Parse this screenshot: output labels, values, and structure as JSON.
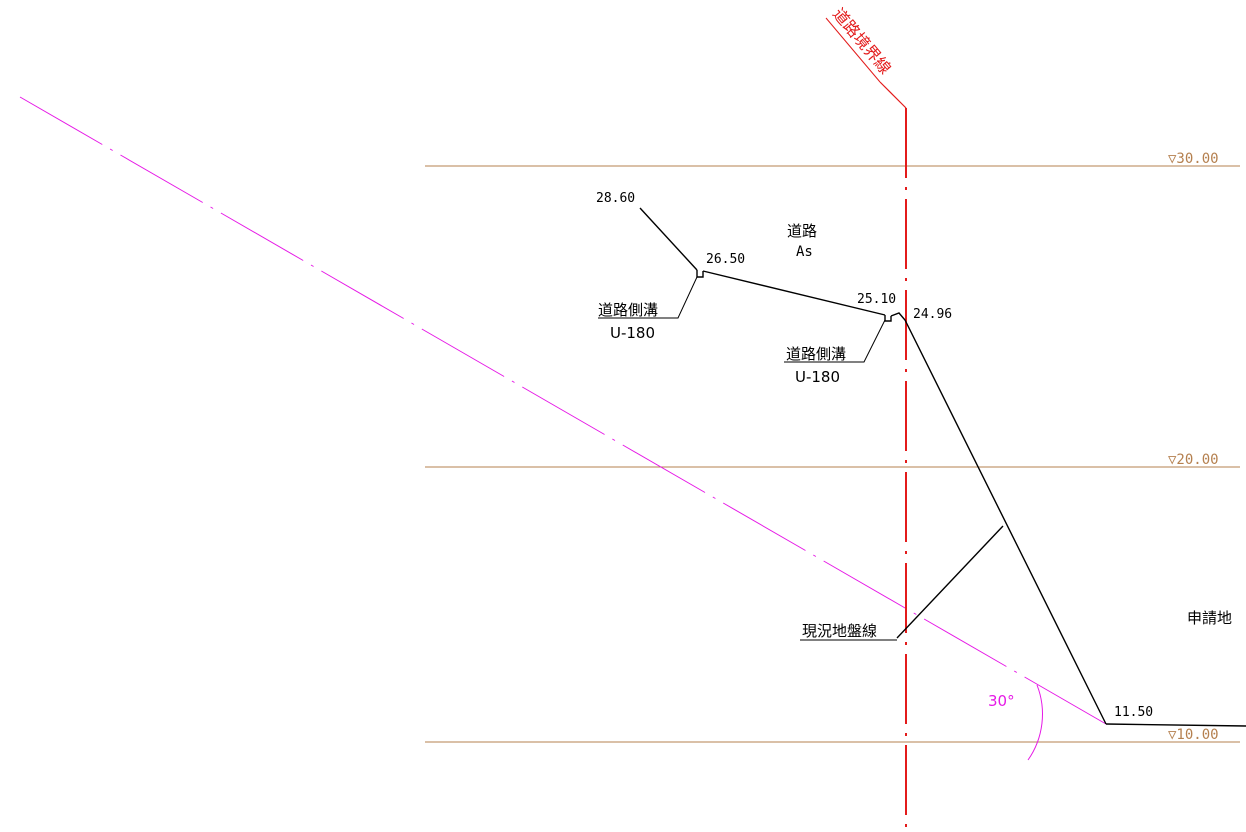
{
  "boundary": {
    "label": "道路境界線",
    "color": "#e31b1b"
  },
  "levels": [
    {
      "label": "▽30.00"
    },
    {
      "label": "▽20.00"
    },
    {
      "label": "▽10.00"
    }
  ],
  "level_color": "#b5804f",
  "elevations": {
    "crest": "28.60",
    "ditch_left": "26.50",
    "ditch_right": "25.10",
    "road_edge": "24.96",
    "toe": "11.50"
  },
  "road": {
    "label": "道路",
    "surface": "As"
  },
  "ditches": [
    {
      "label": "道路側溝",
      "spec": "U-180"
    },
    {
      "label": "道路側溝",
      "spec": "U-180"
    }
  ],
  "ground_line_label": "現況地盤線",
  "application_site_label": "申請地",
  "angle": {
    "label": "30°",
    "color": "#e619e6"
  }
}
